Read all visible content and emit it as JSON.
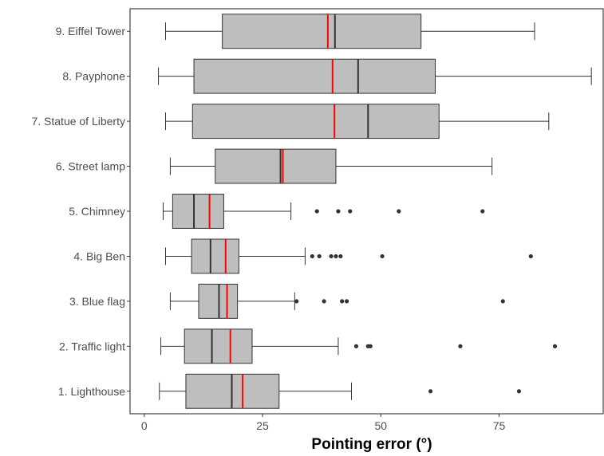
{
  "chart_data": {
    "type": "boxplot",
    "orientation": "horizontal",
    "xlabel": "Pointing error (°)",
    "xlim": [
      -3,
      97
    ],
    "xticks": [
      0,
      25,
      50,
      75
    ],
    "grid": false,
    "colors": {
      "box_fill": "#bebebe",
      "box_stroke": "#333333",
      "median": "#333333",
      "mean": "#ff0000",
      "outlier": "#333333"
    },
    "categories": [
      {
        "label": "9. Eiffel Tower",
        "min": 4.5,
        "q1": 16.5,
        "median": 40.3,
        "q3": 58.5,
        "max": 82.5,
        "mean": 38.8,
        "outliers": []
      },
      {
        "label": "8. Payphone",
        "min": 3.0,
        "q1": 10.5,
        "median": 45.2,
        "q3": 61.5,
        "max": 94.5,
        "mean": 39.8,
        "outliers": []
      },
      {
        "label": "7. Statue of Liberty",
        "min": 4.5,
        "q1": 10.2,
        "median": 47.3,
        "q3": 62.3,
        "max": 85.5,
        "mean": 40.2,
        "outliers": []
      },
      {
        "label": "6. Street lamp",
        "min": 5.5,
        "q1": 15.0,
        "median": 28.8,
        "q3": 40.5,
        "max": 73.5,
        "mean": 29.3,
        "outliers": []
      },
      {
        "label": "5. Chimney",
        "min": 4.0,
        "q1": 6.0,
        "median": 10.5,
        "q3": 16.8,
        "max": 31.0,
        "mean": 13.8,
        "outliers": [
          36.5,
          41.0,
          43.5,
          53.8,
          71.5
        ]
      },
      {
        "label": "4. Big Ben",
        "min": 4.5,
        "q1": 10.0,
        "median": 14.0,
        "q3": 20.0,
        "max": 34.0,
        "mean": 17.2,
        "outliers": [
          35.5,
          37.0,
          39.5,
          40.5,
          41.5,
          50.3,
          81.7
        ]
      },
      {
        "label": "3. Blue flag",
        "min": 5.5,
        "q1": 11.5,
        "median": 15.8,
        "q3": 19.7,
        "max": 31.8,
        "mean": 17.5,
        "outliers": [
          32.2,
          38.0,
          41.8,
          42.8,
          75.8
        ]
      },
      {
        "label": "2. Traffic light",
        "min": 3.5,
        "q1": 8.5,
        "median": 14.3,
        "q3": 22.8,
        "max": 41.0,
        "mean": 18.2,
        "outliers": [
          44.8,
          47.3,
          47.8,
          66.8,
          86.8
        ]
      },
      {
        "label": "1. Lighthouse",
        "min": 3.2,
        "q1": 8.8,
        "median": 18.5,
        "q3": 28.5,
        "max": 43.8,
        "mean": 20.8,
        "outliers": [
          60.5,
          79.2
        ]
      }
    ]
  }
}
